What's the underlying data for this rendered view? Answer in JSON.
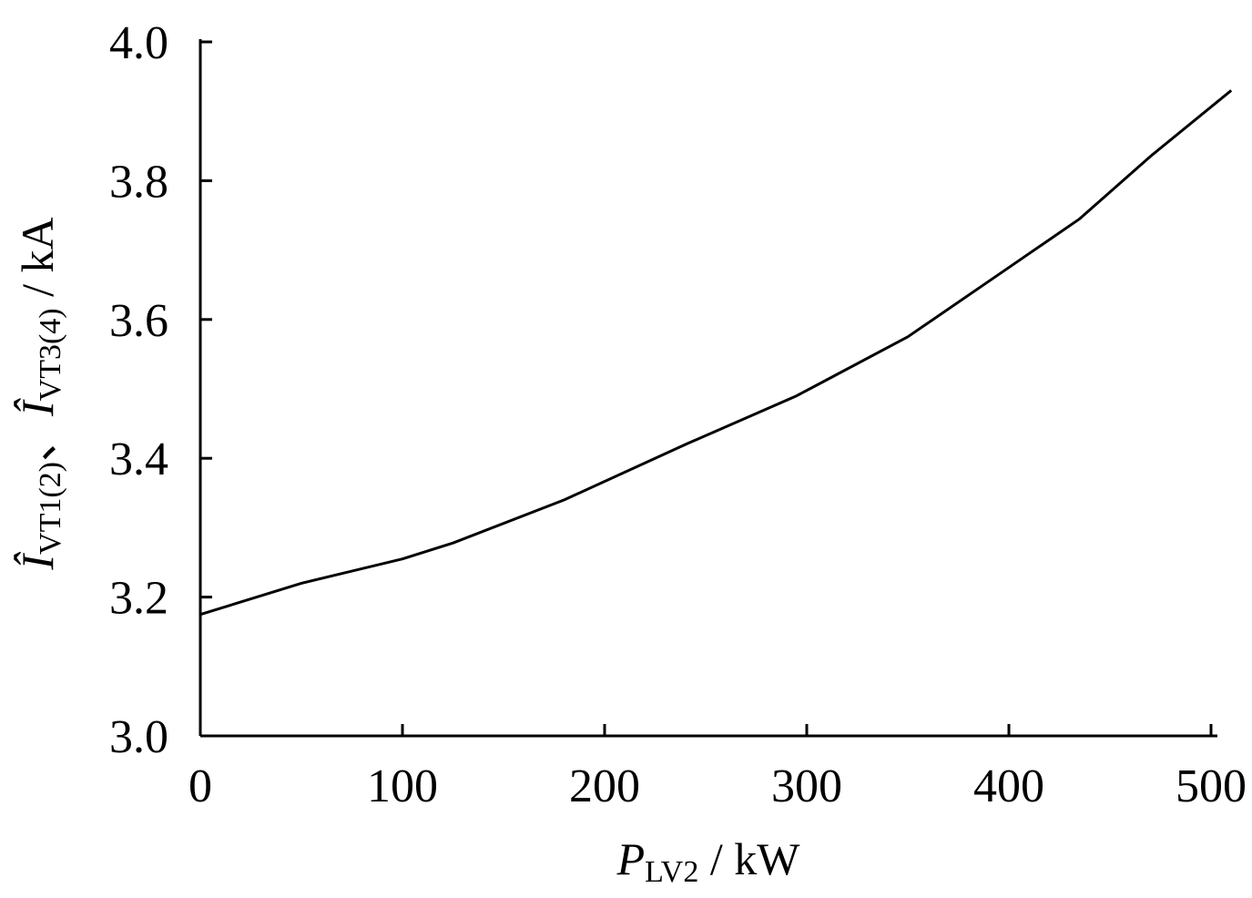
{
  "chart_data": {
    "type": "line",
    "title": "",
    "xlabel": {
      "symbol": "P",
      "subscript": "LV2",
      "unit": " / kW"
    },
    "ylabel": {
      "symbol1": "Î",
      "subscript1": "VT1(2)",
      "separator": "、",
      "symbol2": "Î",
      "subscript2": "VT3(4)",
      "unit": " / kA"
    },
    "xlim": [
      0,
      500
    ],
    "ylim": [
      3.0,
      4.0
    ],
    "xticks": [
      0,
      100,
      200,
      300,
      400,
      500
    ],
    "xtick_labels": [
      "0",
      "100",
      "200",
      "300",
      "400",
      "500"
    ],
    "yticks": [
      3.0,
      3.2,
      3.4,
      3.6,
      3.8,
      4.0
    ],
    "ytick_labels": [
      "3.0",
      "3.2",
      "3.4",
      "3.6",
      "3.8",
      "4.0"
    ],
    "grid": false,
    "series": [
      {
        "x": [
          0,
          50,
          100,
          125,
          180,
          240,
          295,
          350,
          400,
          435,
          470,
          510
        ],
        "y": [
          3.175,
          3.22,
          3.255,
          3.278,
          3.34,
          3.42,
          3.49,
          3.575,
          3.675,
          3.745,
          3.835,
          3.93
        ]
      }
    ]
  }
}
